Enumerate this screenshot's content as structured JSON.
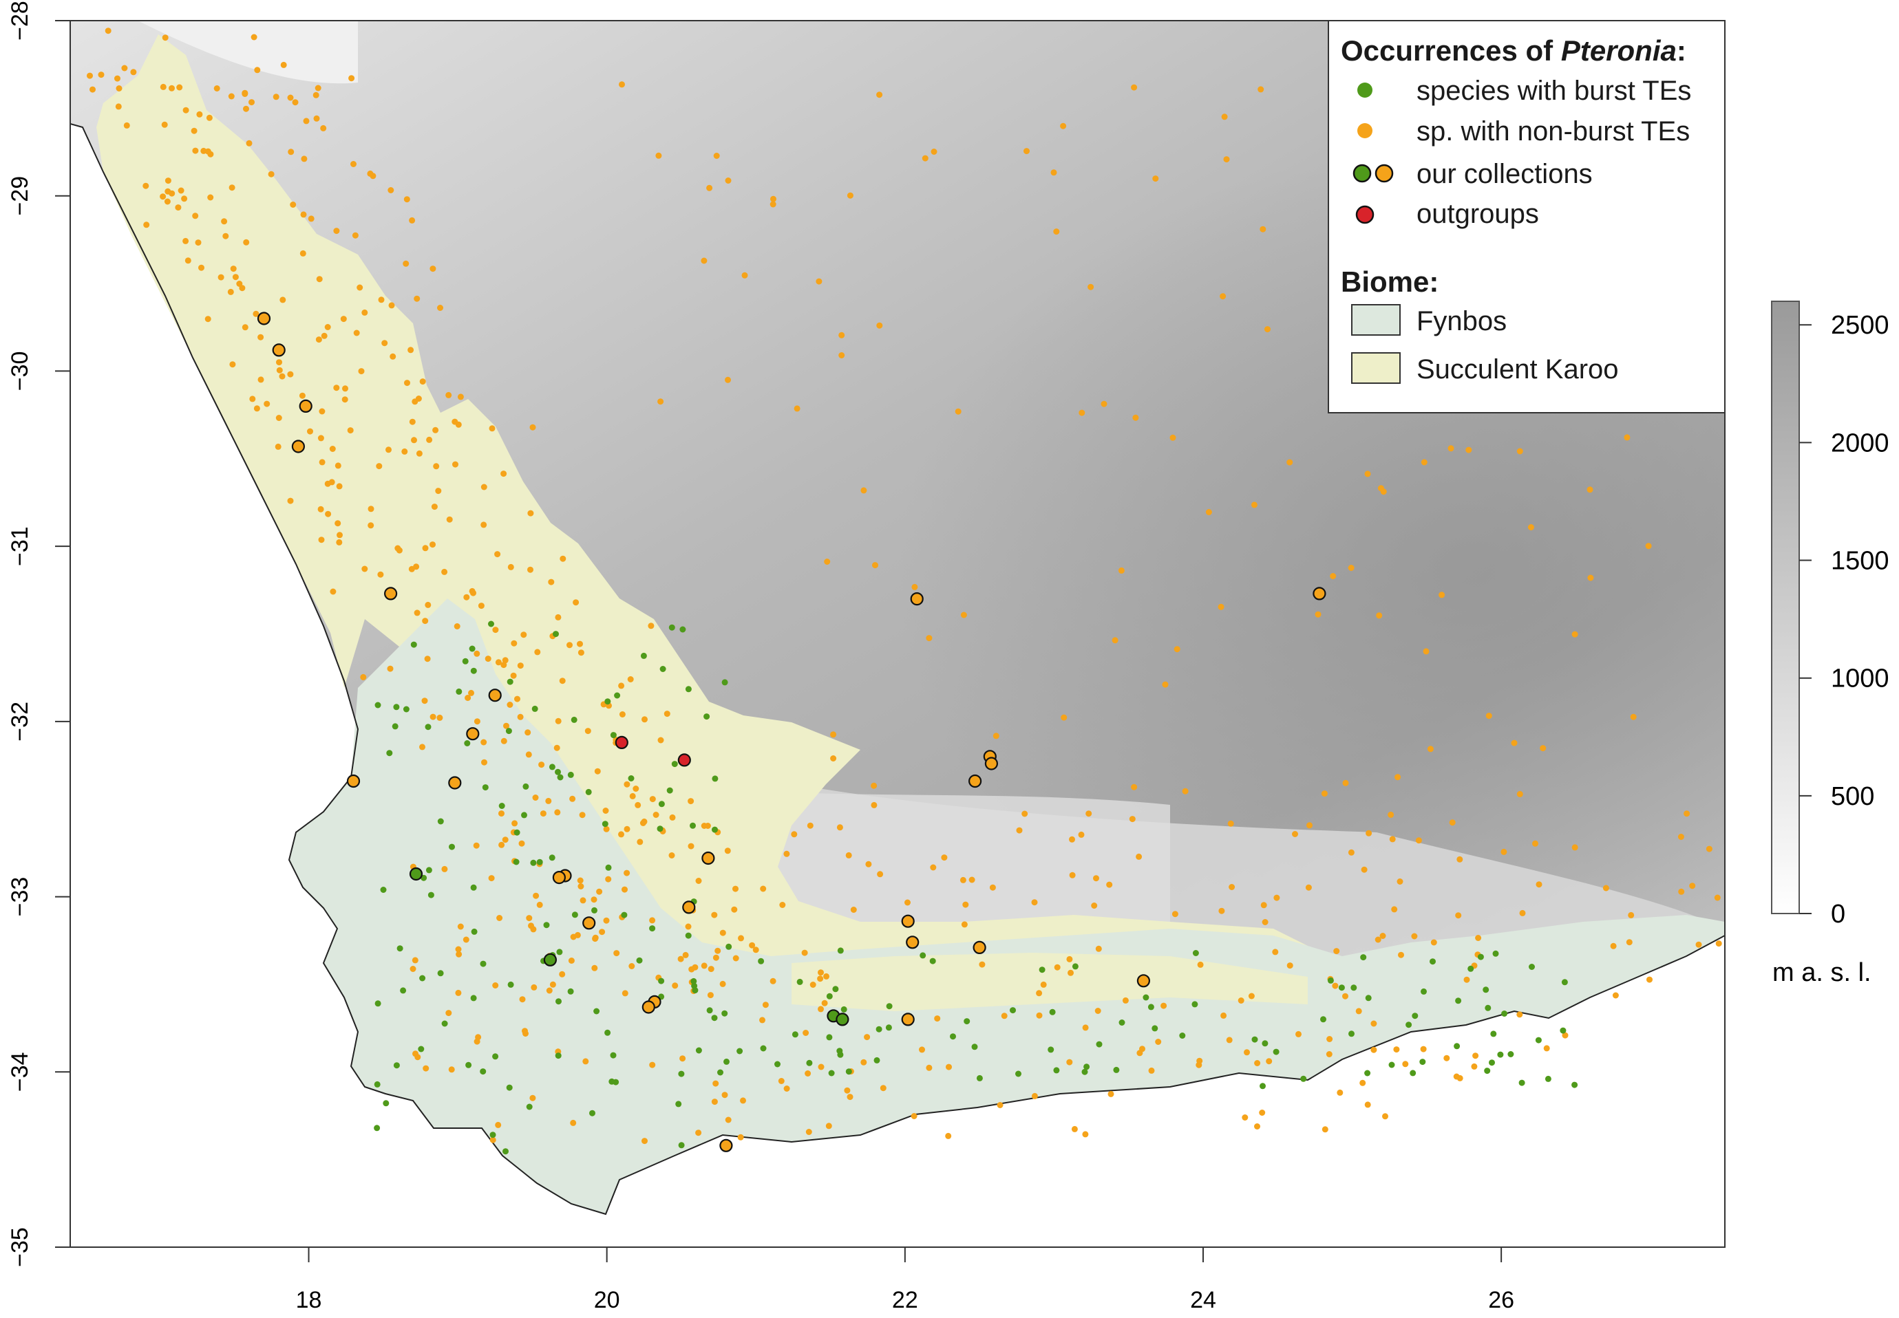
{
  "map": {
    "x_ticks": [
      "18",
      "20",
      "22",
      "24",
      "26"
    ],
    "x_tick_values": [
      18,
      20,
      22,
      24,
      26
    ],
    "y_ticks": [
      "−28",
      "−29",
      "−30",
      "−31",
      "−32",
      "−33",
      "−34",
      "−35"
    ],
    "y_tick_values": [
      -28,
      -29,
      -30,
      -31,
      -32,
      -33,
      -34,
      -35
    ],
    "x_range": [
      16.4,
      27.5
    ],
    "y_range": [
      -35,
      -28
    ]
  },
  "legend": {
    "occurrences_title_prefix": "Occurrences of ",
    "occurrences_title_genus": "Pteronia",
    "occurrences_title_suffix": ":",
    "items": [
      {
        "label": "species with burst TEs",
        "color": "#4f9a1a"
      },
      {
        "label": "sp. with non-burst TEs",
        "color": "#f5a31a"
      },
      {
        "label": "our collections"
      },
      {
        "label": "outgroups",
        "color": "#d8232a"
      }
    ],
    "biome_title": "Biome:",
    "biomes": [
      {
        "label": "Fynbos",
        "color": "#dde8de"
      },
      {
        "label": "Succulent Karoo",
        "color": "#eeefc9"
      }
    ]
  },
  "colorbar": {
    "ticks": [
      "0",
      "500",
      "1000",
      "1500",
      "2000",
      "2500"
    ],
    "tick_values": [
      0,
      500,
      1000,
      1500,
      2000,
      2500
    ],
    "unit": "m a. s. l."
  },
  "collections": {
    "green": [
      [
        18.72,
        -32.87
      ],
      [
        19.62,
        -33.36
      ],
      [
        21.52,
        -33.68
      ],
      [
        21.58,
        -33.7
      ]
    ],
    "orange": [
      [
        17.7,
        -29.7
      ],
      [
        17.8,
        -29.88
      ],
      [
        17.98,
        -30.2
      ],
      [
        17.93,
        -30.43
      ],
      [
        18.55,
        -31.27
      ],
      [
        19.25,
        -31.85
      ],
      [
        19.1,
        -32.07
      ],
      [
        18.3,
        -32.34
      ],
      [
        18.98,
        -32.35
      ],
      [
        19.72,
        -32.88
      ],
      [
        19.68,
        -32.89
      ],
      [
        19.88,
        -33.15
      ],
      [
        20.68,
        -32.78
      ],
      [
        20.55,
        -33.06
      ],
      [
        20.32,
        -33.6
      ],
      [
        20.28,
        -33.63
      ],
      [
        20.8,
        -34.42
      ],
      [
        22.08,
        -31.3
      ],
      [
        24.78,
        -31.27
      ],
      [
        22.57,
        -32.2
      ],
      [
        22.58,
        -32.24
      ],
      [
        22.47,
        -32.34
      ],
      [
        22.02,
        -33.14
      ],
      [
        22.05,
        -33.26
      ],
      [
        22.5,
        -33.29
      ],
      [
        22.02,
        -33.7
      ],
      [
        23.6,
        -33.48
      ]
    ],
    "red": [
      [
        20.1,
        -32.12
      ],
      [
        20.52,
        -32.22
      ]
    ]
  },
  "points": {
    "green_seed": 11,
    "orange_seed": 7
  }
}
